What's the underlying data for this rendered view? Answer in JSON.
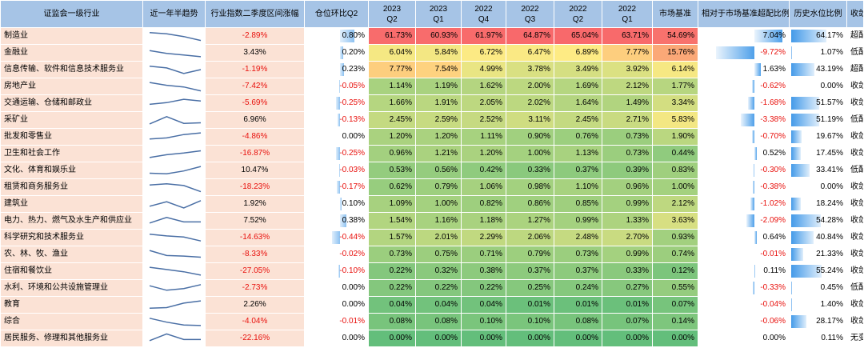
{
  "headers": [
    "证监会一级行业",
    "近一年半趋势",
    "行业指数二季度区间涨幅",
    "仓位环比Q2",
    "2023\nQ2",
    "2023\nQ1",
    "2022\nQ4",
    "2022\nQ3",
    "2022\nQ2",
    "2022\nQ1",
    "市场基准",
    "相对于市场基准超配比例",
    "历史水位比例",
    "收敛方向"
  ],
  "rows": [
    {
      "industry": "制造业",
      "trend": [
        0.2,
        0.3,
        0.55,
        0.9
      ],
      "change": "-2.89%",
      "pos": "0.80%",
      "q": [
        "61.73%",
        "60.93%",
        "61.97%",
        "64.87%",
        "65.04%",
        "63.71%"
      ],
      "bench": "54.69%",
      "over": "7.04%",
      "hist": "64.17%",
      "dir": "超配扩大"
    },
    {
      "industry": "金融业",
      "trend": [
        0.3,
        0.55,
        0.7,
        0.85
      ],
      "change": "3.43%",
      "pos": "0.20%",
      "q": [
        "6.04%",
        "5.84%",
        "6.72%",
        "6.47%",
        "6.89%",
        "7.77%"
      ],
      "bench": "15.76%",
      "over": "-9.72%",
      "hist": "1.07%",
      "dir": "低配扩大"
    },
    {
      "industry": "信息传输、软件和信息技术服务业",
      "trend": [
        0.2,
        0.35,
        0.85,
        0.5
      ],
      "change": "-1.19%",
      "pos": "0.23%",
      "q": [
        "7.77%",
        "7.54%",
        "4.99%",
        "3.78%",
        "3.49%",
        "3.92%"
      ],
      "bench": "6.14%",
      "over": "1.63%",
      "hist": "43.19%",
      "dir": "超配扩大"
    },
    {
      "industry": "房地产业",
      "trend": [
        0.15,
        0.4,
        0.55,
        0.9
      ],
      "change": "-7.42%",
      "pos": "-0.05%",
      "q": [
        "1.14%",
        "1.19%",
        "1.62%",
        "2.00%",
        "1.69%",
        "2.12%"
      ],
      "bench": "1.77%",
      "over": "-0.62%",
      "hist": "0.00%",
      "dir": "收敛"
    },
    {
      "industry": "交通运输、仓储和邮政业",
      "trend": [
        0.6,
        0.45,
        0.15,
        0.3
      ],
      "change": "-5.69%",
      "pos": "-0.25%",
      "q": [
        "1.66%",
        "1.91%",
        "2.05%",
        "2.02%",
        "1.64%",
        "1.49%"
      ],
      "bench": "3.34%",
      "over": "-1.68%",
      "hist": "51.57%",
      "dir": "收敛"
    },
    {
      "industry": "采矿业",
      "trend": [
        0.85,
        0.2,
        0.8,
        0.75
      ],
      "change": "6.96%",
      "pos": "-0.13%",
      "q": [
        "2.45%",
        "2.59%",
        "2.52%",
        "3.11%",
        "2.45%",
        "2.71%"
      ],
      "bench": "5.83%",
      "over": "-3.38%",
      "hist": "51.19%",
      "dir": "低配扩大"
    },
    {
      "industry": "批发和零售业",
      "trend": [
        0.7,
        0.6,
        0.3,
        0.15
      ],
      "change": "-4.86%",
      "pos": "0.00%",
      "q": [
        "1.20%",
        "1.20%",
        "1.11%",
        "0.90%",
        "0.76%",
        "0.73%"
      ],
      "bench": "1.90%",
      "over": "-0.70%",
      "hist": "19.67%",
      "dir": "收敛"
    },
    {
      "industry": "卫生和社会工作",
      "trend": [
        0.85,
        0.6,
        0.45,
        0.25
      ],
      "change": "-16.87%",
      "pos": "-0.25%",
      "q": [
        "0.96%",
        "1.21%",
        "1.20%",
        "1.00%",
        "1.13%",
        "0.73%"
      ],
      "bench": "0.44%",
      "over": "0.52%",
      "hist": "17.45%",
      "dir": "收敛"
    },
    {
      "industry": "文化、体育和娱乐业",
      "trend": [
        0.75,
        0.8,
        0.55,
        0.15
      ],
      "change": "10.47%",
      "pos": "-0.03%",
      "q": [
        "0.53%",
        "0.56%",
        "0.42%",
        "0.33%",
        "0.37%",
        "0.39%"
      ],
      "bench": "0.83%",
      "over": "-0.30%",
      "hist": "33.41%",
      "dir": "低配扩大"
    },
    {
      "industry": "租赁和商务服务业",
      "trend": [
        0.3,
        0.2,
        0.35,
        0.9
      ],
      "change": "-18.23%",
      "pos": "-0.17%",
      "q": [
        "0.62%",
        "0.79%",
        "1.06%",
        "0.98%",
        "1.10%",
        "0.96%"
      ],
      "bench": "1.00%",
      "over": "-0.38%",
      "hist": "0.00%",
      "dir": "收敛"
    },
    {
      "industry": "建筑业",
      "trend": [
        0.7,
        0.3,
        0.85,
        0.2
      ],
      "change": "1.92%",
      "pos": "0.10%",
      "q": [
        "1.09%",
        "1.00%",
        "0.82%",
        "0.86%",
        "0.85%",
        "0.99%"
      ],
      "bench": "2.12%",
      "over": "-1.02%",
      "hist": "18.24%",
      "dir": "收敛"
    },
    {
      "industry": "电力、热力、燃气及水生产和供应业",
      "trend": [
        0.7,
        0.2,
        0.6,
        0.6
      ],
      "change": "7.52%",
      "pos": "0.38%",
      "q": [
        "1.54%",
        "1.16%",
        "1.18%",
        "1.27%",
        "0.99%",
        "1.33%"
      ],
      "bench": "3.63%",
      "over": "-2.09%",
      "hist": "54.28%",
      "dir": "收敛"
    },
    {
      "industry": "科学研究和技术服务业",
      "trend": [
        0.2,
        0.35,
        0.45,
        0.8
      ],
      "change": "-14.63%",
      "pos": "-0.44%",
      "q": [
        "1.57%",
        "2.01%",
        "2.29%",
        "2.06%",
        "2.48%",
        "2.70%"
      ],
      "bench": "0.93%",
      "over": "0.64%",
      "hist": "40.84%",
      "dir": "收敛"
    },
    {
      "industry": "农、林、牧、渔业",
      "trend": [
        0.15,
        0.6,
        0.65,
        0.75
      ],
      "change": "-8.33%",
      "pos": "-0.02%",
      "q": [
        "0.73%",
        "0.75%",
        "0.71%",
        "0.79%",
        "0.73%",
        "0.99%"
      ],
      "bench": "0.74%",
      "over": "-0.01%",
      "hist": "21.33%",
      "dir": "收敛"
    },
    {
      "industry": "住宿和餐饮业",
      "trend": [
        0.15,
        0.35,
        0.55,
        0.85
      ],
      "change": "-27.05%",
      "pos": "-0.10%",
      "q": [
        "0.22%",
        "0.32%",
        "0.38%",
        "0.37%",
        "0.37%",
        "0.33%"
      ],
      "bench": "0.12%",
      "over": "0.11%",
      "hist": "55.24%",
      "dir": "收敛"
    },
    {
      "industry": "水利、环境和公共设施管理业",
      "trend": [
        0.3,
        0.7,
        0.55,
        0.2
      ],
      "change": "-2.73%",
      "pos": "0.00%",
      "q": [
        "0.22%",
        "0.22%",
        "0.22%",
        "0.25%",
        "0.24%",
        "0.27%"
      ],
      "bench": "0.55%",
      "over": "-0.33%",
      "hist": "0.45%",
      "dir": "低配扩大"
    },
    {
      "industry": "教育",
      "trend": [
        0.8,
        0.75,
        0.35,
        0.15
      ],
      "change": "2.26%",
      "pos": "0.00%",
      "q": [
        "0.04%",
        "0.04%",
        "0.04%",
        "0.01%",
        "0.01%",
        "0.01%"
      ],
      "bench": "0.07%",
      "over": "-0.04%",
      "hist": "1.40%",
      "dir": "收敛"
    },
    {
      "industry": "综合",
      "trend": [
        0.2,
        0.55,
        0.8,
        0.85
      ],
      "change": "-4.04%",
      "pos": "-0.01%",
      "q": [
        "0.08%",
        "0.08%",
        "0.10%",
        "0.10%",
        "0.08%",
        "0.07%"
      ],
      "bench": "0.14%",
      "over": "-0.06%",
      "hist": "28.17%",
      "dir": "收敛"
    },
    {
      "industry": "居民服务、修理和其他服务业",
      "trend": [
        0.7,
        0.1,
        0.6,
        0.6
      ],
      "change": "-22.16%",
      "pos": "0.00%",
      "q": [
        "0.00%",
        "0.00%",
        "0.00%",
        "0.00%",
        "0.00%",
        "0.00%"
      ],
      "bench": "0.00%",
      "over": "0.00%",
      "hist": "0.11%",
      "dir": "无变化"
    }
  ],
  "colors": {
    "header_bg": "#a6c4e6",
    "industry_bg": "#fbe2d5",
    "negative_text": "#e8100c",
    "sparkline": "#4a6fa5",
    "heat_low": "#63be7b",
    "heat_mid": "#ffeb84",
    "heat_high": "#f8696b",
    "databar": "#2f8fe6"
  }
}
